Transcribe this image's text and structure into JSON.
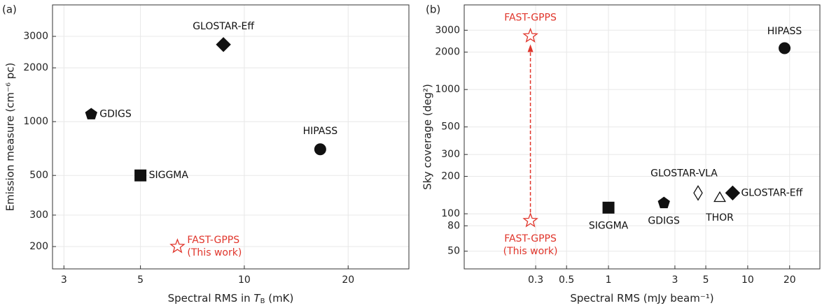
{
  "chart_data": [
    {
      "type": "scatter",
      "panel_label": "(a)",
      "xlabel": [
        "Spectral RMS in ",
        "T",
        "B",
        " (mK)"
      ],
      "ylabel": "Emission measure (cm⁻⁶ pc)",
      "log_x": true,
      "log_y": true,
      "grid": true,
      "xlim": [
        2.78,
        30
      ],
      "ylim": [
        150,
        4500
      ],
      "xticks": [
        3,
        5,
        10,
        20
      ],
      "yticks": [
        200,
        300,
        500,
        1000,
        2000,
        3000
      ],
      "series": [
        {
          "name": "GLOSTAR-Eff",
          "marker": "diamond",
          "color": "#111111",
          "filled": true,
          "x": [
            8.7
          ],
          "values": [
            2700
          ]
        },
        {
          "name": "GDIGS",
          "marker": "pentagon",
          "color": "#111111",
          "filled": true,
          "x": [
            3.6
          ],
          "values": [
            1100
          ]
        },
        {
          "name": "HIPASS",
          "marker": "circle",
          "color": "#111111",
          "filled": true,
          "x": [
            16.6
          ],
          "values": [
            700
          ]
        },
        {
          "name": "SIGGMA",
          "marker": "square",
          "color": "#111111",
          "filled": true,
          "x": [
            5
          ],
          "values": [
            500
          ]
        },
        {
          "name": "FAST-GPPS",
          "note": "(This work)",
          "marker": "star",
          "color": "#e0352b",
          "filled": false,
          "x": [
            6.4
          ],
          "values": [
            200
          ]
        }
      ]
    },
    {
      "type": "scatter",
      "panel_label": "(b)",
      "xlabel": [
        "Spectral RMS (mJy beam⁻¹)"
      ],
      "ylabel": "Sky coverage (deg²)",
      "log_x": true,
      "log_y": true,
      "grid": true,
      "xlim": [
        0.092,
        33
      ],
      "ylim": [
        36,
        4800
      ],
      "xticks": [
        0.3,
        0.5,
        1,
        3,
        5,
        10,
        20
      ],
      "yticks": [
        50,
        80,
        100,
        200,
        300,
        500,
        1000,
        2000,
        3000
      ],
      "series": [
        {
          "name": "FAST-GPPS",
          "note": "(This work)",
          "marker": "star",
          "color": "#e0352b",
          "filled": false,
          "arrow": true,
          "x": [
            0.275,
            0.275
          ],
          "values": [
            88,
            2700
          ]
        },
        {
          "name": "SIGGMA",
          "marker": "square",
          "color": "#111111",
          "filled": true,
          "x": [
            1
          ],
          "values": [
            112
          ]
        },
        {
          "name": "GDIGS",
          "marker": "pentagon",
          "color": "#111111",
          "filled": true,
          "x": [
            2.5
          ],
          "values": [
            122
          ]
        },
        {
          "name": "GLOSTAR-VLA",
          "marker": "diamond",
          "color": "#111111",
          "filled": false,
          "x": [
            4.4
          ],
          "values": [
            147
          ]
        },
        {
          "name": "THOR",
          "marker": "triangle",
          "color": "#111111",
          "filled": false,
          "x": [
            6.3
          ],
          "values": [
            133
          ]
        },
        {
          "name": "GLOSTAR-Eff",
          "marker": "diamond",
          "color": "#111111",
          "filled": true,
          "x": [
            7.8
          ],
          "values": [
            147
          ]
        },
        {
          "name": "HIPASS",
          "marker": "circle",
          "color": "#111111",
          "filled": true,
          "x": [
            18.4
          ],
          "values": [
            2150
          ]
        }
      ]
    }
  ]
}
